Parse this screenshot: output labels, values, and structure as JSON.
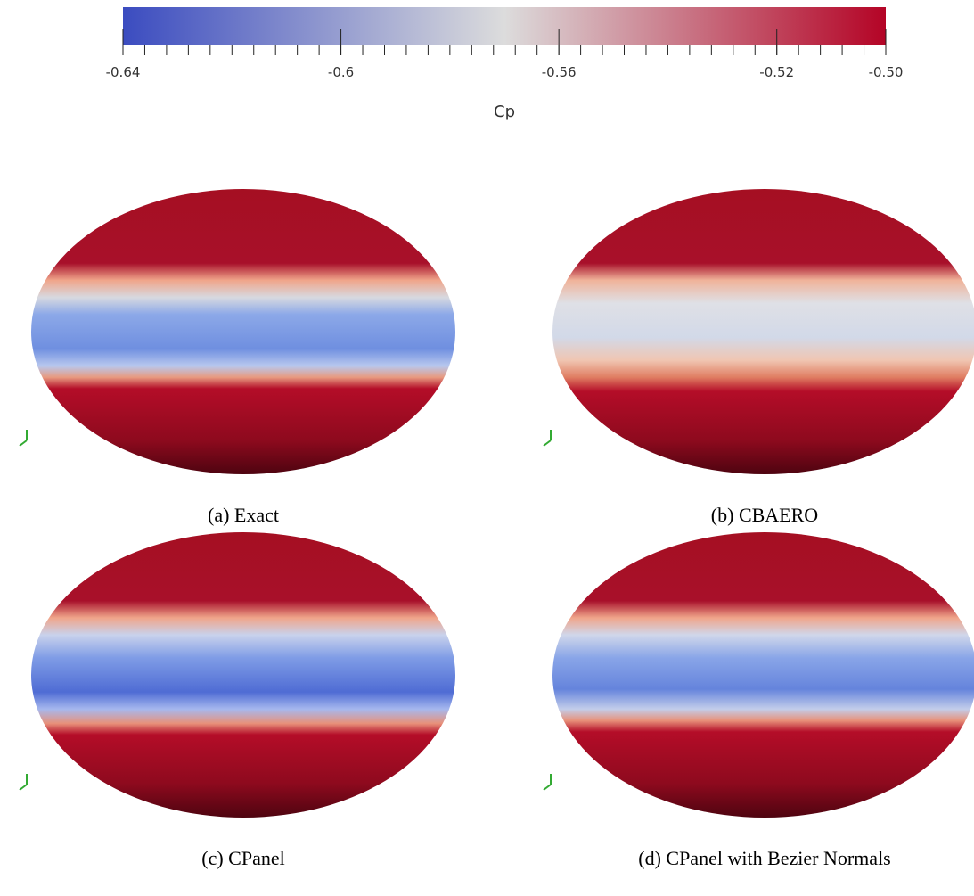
{
  "colorbar": {
    "label": "Cp",
    "lim": [
      -0.64,
      -0.5
    ],
    "ticks": [
      -0.64,
      -0.6,
      -0.56,
      -0.52,
      {
        "value": -0.5,
        "label": "-0.50"
      }
    ],
    "minor_ticks": [
      -0.64,
      -0.636,
      -0.632,
      -0.628,
      -0.624,
      -0.62,
      -0.616,
      -0.612,
      -0.608,
      -0.604,
      -0.6,
      -0.596,
      -0.592,
      -0.588,
      -0.584,
      -0.58,
      -0.576,
      -0.572,
      -0.568,
      -0.564,
      -0.56,
      -0.556,
      -0.552,
      -0.548,
      -0.544,
      -0.54,
      -0.536,
      -0.532,
      -0.528,
      -0.524,
      -0.52,
      -0.516,
      -0.512,
      -0.508,
      -0.504,
      -0.5
    ],
    "colormap": [
      "#3b4cc0",
      "#dcdcdc",
      "#b40426"
    ]
  },
  "panels": [
    {
      "caption": "(a) Exact"
    },
    {
      "caption": "(b) CBAERO"
    },
    {
      "caption": "(c) CPanel"
    },
    {
      "caption": "(d) CPanel with Bezier Normals"
    }
  ]
}
